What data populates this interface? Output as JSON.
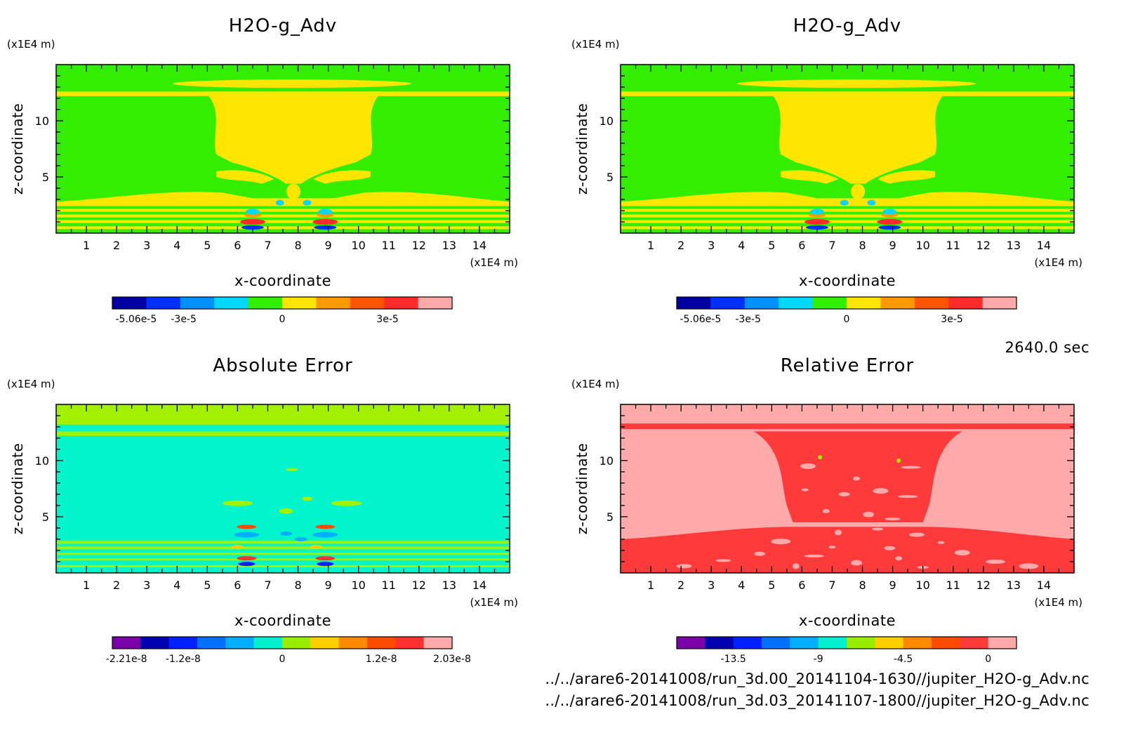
{
  "figure": {
    "timestamp": "2640.0 sec",
    "files": [
      "../../arare6-20141008/run_3d.00_20141104-1630//jupiter_H2O-g_Adv.nc",
      "../../arare6-20141008/run_3d.03_20141107-1800//jupiter_H2O-g_Adv.nc"
    ]
  },
  "chart_data": [
    {
      "type": "heatmap",
      "title": "H2O-g_Adv",
      "xlabel": "x-coordinate",
      "ylabel": "z-coordinate",
      "x_unit": "(x1E4 m)",
      "y_unit": "(x1E4 m)",
      "xlim": [
        0,
        15
      ],
      "ylim": [
        0,
        15
      ],
      "x_ticks": [
        "1",
        "2",
        "3",
        "4",
        "5",
        "6",
        "7",
        "8",
        "9",
        "10",
        "11",
        "12",
        "13",
        "14"
      ],
      "y_ticks": [
        "5",
        "10"
      ],
      "pattern": "field",
      "colorbar": {
        "colors": [
          "#0000a0",
          "#0030ff",
          "#0090ff",
          "#00d8ff",
          "#33ee00",
          "#ffe600",
          "#ff9900",
          "#ff5500",
          "#ff2a2a",
          "#ffaaaa"
        ],
        "labels": [
          "-5.06e-5",
          "-3e-5",
          "0",
          "3e-5"
        ]
      },
      "background": "#33ee00",
      "feature": "#ffe600"
    },
    {
      "type": "heatmap",
      "title": "H2O-g_Adv",
      "xlabel": "x-coordinate",
      "ylabel": "z-coordinate",
      "x_unit": "(x1E4 m)",
      "y_unit": "(x1E4 m)",
      "xlim": [
        0,
        15
      ],
      "ylim": [
        0,
        15
      ],
      "x_ticks": [
        "1",
        "2",
        "3",
        "4",
        "5",
        "6",
        "7",
        "8",
        "9",
        "10",
        "11",
        "12",
        "13",
        "14"
      ],
      "y_ticks": [
        "5",
        "10"
      ],
      "pattern": "field",
      "colorbar": {
        "colors": [
          "#0000a0",
          "#0030ff",
          "#0090ff",
          "#00d8ff",
          "#33ee00",
          "#ffe600",
          "#ff9900",
          "#ff5500",
          "#ff2a2a",
          "#ffaaaa"
        ],
        "labels": [
          "-5.06e-5",
          "-3e-5",
          "0",
          "3e-5"
        ]
      },
      "background": "#33ee00",
      "feature": "#ffe600"
    },
    {
      "type": "heatmap",
      "title": "Absolute Error",
      "xlabel": "x-coordinate",
      "ylabel": "z-coordinate",
      "x_unit": "(x1E4 m)",
      "y_unit": "(x1E4 m)",
      "xlim": [
        0,
        15
      ],
      "ylim": [
        0,
        15
      ],
      "x_ticks": [
        "1",
        "2",
        "3",
        "4",
        "5",
        "6",
        "7",
        "8",
        "9",
        "10",
        "11",
        "12",
        "13",
        "14"
      ],
      "y_ticks": [
        "5",
        "10"
      ],
      "pattern": "abs",
      "colorbar": {
        "colors": [
          "#7a00a8",
          "#0000b0",
          "#0020ff",
          "#0070ff",
          "#00b0ff",
          "#00f0d0",
          "#99ee00",
          "#ffd000",
          "#ff8a00",
          "#ff4a00",
          "#ff3030",
          "#ffaaaa"
        ],
        "labels": [
          "-2.21e-8",
          "-1.2e-8",
          "0",
          "1.2e-8",
          "2.03e-8"
        ]
      },
      "background": "#00f5cc",
      "feature": "#a3f000"
    },
    {
      "type": "heatmap",
      "title": "Relative Error",
      "xlabel": "x-coordinate",
      "ylabel": "z-coordinate",
      "x_unit": "(x1E4 m)",
      "y_unit": "(x1E4 m)",
      "xlim": [
        0,
        15
      ],
      "ylim": [
        0,
        15
      ],
      "x_ticks": [
        "1",
        "2",
        "3",
        "4",
        "5",
        "6",
        "7",
        "8",
        "9",
        "10",
        "11",
        "12",
        "13",
        "14"
      ],
      "y_ticks": [
        "5",
        "10"
      ],
      "pattern": "rel",
      "colorbar": {
        "colors": [
          "#7a00a8",
          "#0000b0",
          "#0020ff",
          "#0070ff",
          "#00b0ff",
          "#00f0d0",
          "#99ee00",
          "#ffd000",
          "#ff8a00",
          "#ff4a00",
          "#ff3a3a",
          "#ffaaaa"
        ],
        "labels": [
          "-13.5",
          "-9",
          "-4.5",
          "0"
        ]
      },
      "background": "#ffaaaa",
      "feature": "#ff3a3a"
    }
  ]
}
